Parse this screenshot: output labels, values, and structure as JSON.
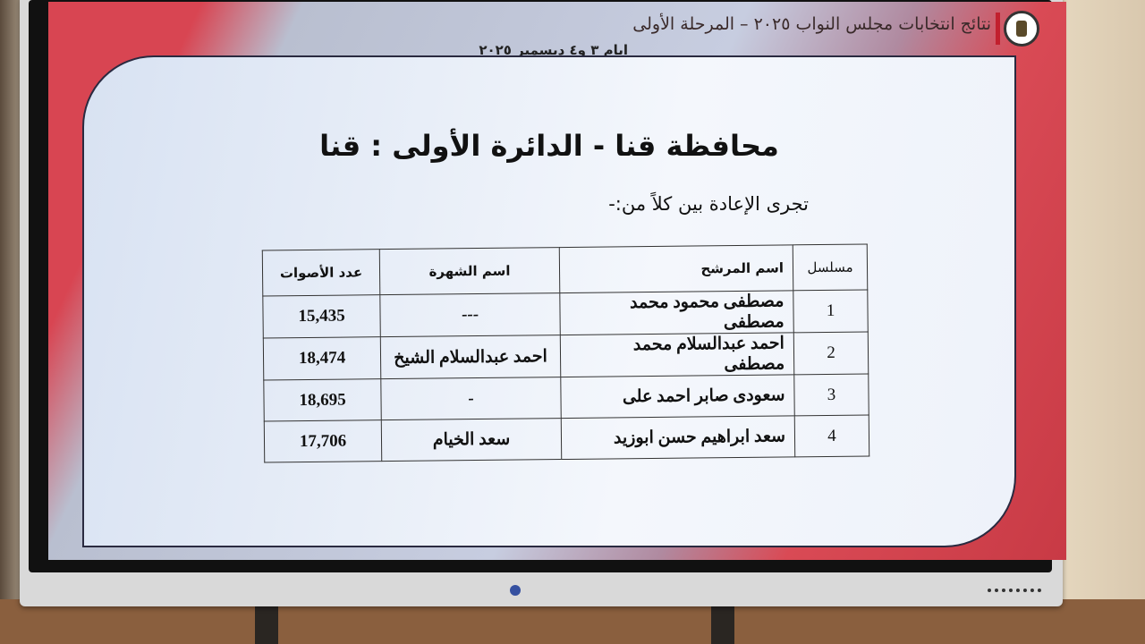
{
  "slide": {
    "header_line1": "نتائج انتخابات مجلس النواب ٢٠٢٥ – المرحلة الأولى",
    "header_line2": "ايام ٣ و٤ ديسمبر ٢٠٢٥",
    "title": "محافظة قنا - الدائرة الأولى : قنا",
    "subtitle": "تجرى الإعادة بين كلاً من:-",
    "colors": {
      "accent_red": "#d84552",
      "panel": "#eef2fa"
    }
  },
  "table": {
    "headers": [
      "مسلسل",
      "اسم المرشح",
      "اسم الشهرة",
      "عدد الأصوات"
    ],
    "rows": [
      [
        "1",
        "مصطفى محمود محمد مصطفى",
        "---",
        "15,435"
      ],
      [
        "2",
        "احمد عبدالسلام محمد مصطفى",
        "احمد عبدالسلام الشيخ",
        "18,474"
      ],
      [
        "3",
        "سعودى صابر احمد على",
        "-",
        "18,695"
      ],
      [
        "4",
        "سعد ابراهيم حسن ابوزيد",
        "سعد الخيام",
        "17,706"
      ]
    ]
  }
}
